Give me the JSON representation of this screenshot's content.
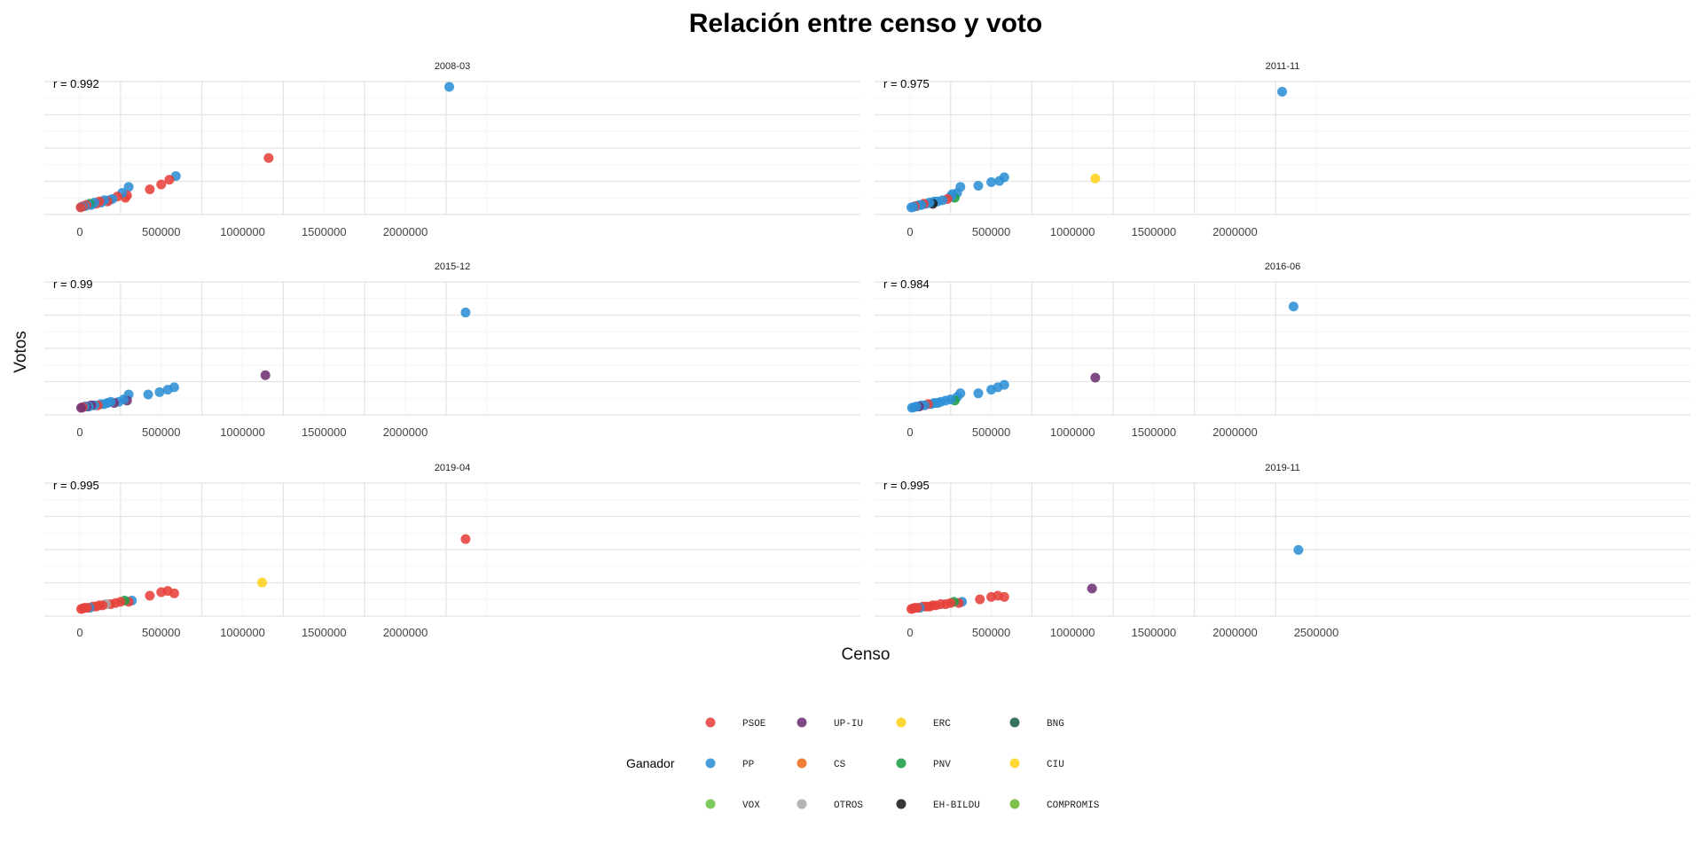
{
  "chart_data": {
    "type": "scatter",
    "title": "Relación entre censo y voto",
    "xlabel": "Censo",
    "ylabel": "Votos",
    "grid": true,
    "legend": {
      "title": "Ganador",
      "placement": "bottom",
      "entries": [
        {
          "name": "PSOE",
          "color": "#E6413A"
        },
        {
          "name": "UP-IU",
          "color": "#6E3274"
        },
        {
          "name": "ERC",
          "color": "#FFD21E"
        },
        {
          "name": "BNG",
          "color": "#1B5E4B"
        },
        {
          "name": "PP",
          "color": "#2D8FD5"
        },
        {
          "name": "CS",
          "color": "#EF6B1E"
        },
        {
          "name": "PNV",
          "color": "#1B9E48"
        },
        {
          "name": "CIU",
          "color": "#FFD21E"
        },
        {
          "name": "VOX",
          "color": "#6EC449"
        },
        {
          "name": "OTROS",
          "color": "#A9A9A9"
        },
        {
          "name": "EH-BILDU",
          "color": "#1A1A1A"
        },
        {
          "name": "COMPROMIS",
          "color": "#6EB836"
        }
      ]
    },
    "panels": [
      {
        "label": "2008-03",
        "r_label": "r = 0.992",
        "xticks": [
          "0",
          "500000",
          "1000000",
          "1500000",
          "2000000"
        ],
        "points": [
          {
            "x": 2270000,
            "y": 1.0,
            "party": "PP"
          },
          {
            "x": 1160000,
            "y": 0.41,
            "party": "PSOE"
          },
          {
            "x": 590000,
            "y": 0.26,
            "party": "PP"
          },
          {
            "x": 550000,
            "y": 0.23,
            "party": "PSOE"
          },
          {
            "x": 500000,
            "y": 0.19,
            "party": "PSOE"
          },
          {
            "x": 430000,
            "y": 0.15,
            "party": "PSOE"
          },
          {
            "x": 300000,
            "y": 0.17,
            "party": "PP"
          },
          {
            "x": 290000,
            "y": 0.1,
            "party": "PSOE"
          },
          {
            "x": 280000,
            "y": 0.08,
            "party": "PSOE"
          },
          {
            "x": 260000,
            "y": 0.12,
            "party": "PP"
          },
          {
            "x": 230000,
            "y": 0.09,
            "party": "PSOE"
          },
          {
            "x": 200000,
            "y": 0.07,
            "party": "PP"
          },
          {
            "x": 180000,
            "y": 0.06,
            "party": "PP"
          },
          {
            "x": 170000,
            "y": 0.05,
            "party": "PSOE"
          },
          {
            "x": 150000,
            "y": 0.06,
            "party": "PP"
          },
          {
            "x": 130000,
            "y": 0.04,
            "party": "PP"
          },
          {
            "x": 120000,
            "y": 0.05,
            "party": "PSOE"
          },
          {
            "x": 100000,
            "y": 0.03,
            "party": "PSOE"
          },
          {
            "x": 90000,
            "y": 0.04,
            "party": "PP"
          },
          {
            "x": 70000,
            "y": 0.02,
            "party": "PP"
          },
          {
            "x": 60000,
            "y": 0.03,
            "party": "PNV"
          },
          {
            "x": 50000,
            "y": 0.02,
            "party": "PP"
          },
          {
            "x": 40000,
            "y": 0.02,
            "party": "PSOE"
          },
          {
            "x": 30000,
            "y": 0.01,
            "party": "PP"
          },
          {
            "x": 20000,
            "y": 0.01,
            "party": "PSOE"
          },
          {
            "x": 10000,
            "y": 0.005,
            "party": "PP"
          },
          {
            "x": 5000,
            "y": 0.0,
            "party": "PSOE"
          }
        ]
      },
      {
        "label": "2011-11",
        "r_label": "r = 0.975",
        "xticks": [
          "0",
          "500000",
          "1000000",
          "1500000",
          "2000000"
        ],
        "points": [
          {
            "x": 2290000,
            "y": 0.96,
            "party": "PP"
          },
          {
            "x": 1140000,
            "y": 0.24,
            "party": "CIU"
          },
          {
            "x": 580000,
            "y": 0.25,
            "party": "PP"
          },
          {
            "x": 550000,
            "y": 0.22,
            "party": "PP"
          },
          {
            "x": 500000,
            "y": 0.21,
            "party": "PP"
          },
          {
            "x": 420000,
            "y": 0.18,
            "party": "PP"
          },
          {
            "x": 310000,
            "y": 0.17,
            "party": "PP"
          },
          {
            "x": 290000,
            "y": 0.12,
            "party": "PP"
          },
          {
            "x": 275000,
            "y": 0.08,
            "party": "PNV"
          },
          {
            "x": 260000,
            "y": 0.11,
            "party": "PP"
          },
          {
            "x": 250000,
            "y": 0.09,
            "party": "PP"
          },
          {
            "x": 230000,
            "y": 0.07,
            "party": "PSOE"
          },
          {
            "x": 200000,
            "y": 0.06,
            "party": "PP"
          },
          {
            "x": 170000,
            "y": 0.05,
            "party": "PP"
          },
          {
            "x": 150000,
            "y": 0.05,
            "party": "PP"
          },
          {
            "x": 140000,
            "y": 0.03,
            "party": "EH-BILDU"
          },
          {
            "x": 120000,
            "y": 0.04,
            "party": "PP"
          },
          {
            "x": 100000,
            "y": 0.03,
            "party": "PP"
          },
          {
            "x": 85000,
            "y": 0.03,
            "party": "PSOE"
          },
          {
            "x": 70000,
            "y": 0.02,
            "party": "PP"
          },
          {
            "x": 55000,
            "y": 0.02,
            "party": "PP"
          },
          {
            "x": 40000,
            "y": 0.01,
            "party": "PP"
          },
          {
            "x": 30000,
            "y": 0.01,
            "party": "PSOE"
          },
          {
            "x": 20000,
            "y": 0.005,
            "party": "PP"
          },
          {
            "x": 8000,
            "y": 0.0,
            "party": "PP"
          }
        ]
      },
      {
        "label": "2015-12",
        "r_label": "r = 0.99",
        "xticks": [
          "0",
          "500000",
          "1000000",
          "1500000",
          "2000000"
        ],
        "points": [
          {
            "x": 2370000,
            "y": 0.79,
            "party": "PP"
          },
          {
            "x": 1140000,
            "y": 0.27,
            "party": "UP-IU"
          },
          {
            "x": 580000,
            "y": 0.17,
            "party": "PP"
          },
          {
            "x": 540000,
            "y": 0.15,
            "party": "PP"
          },
          {
            "x": 490000,
            "y": 0.13,
            "party": "PP"
          },
          {
            "x": 420000,
            "y": 0.11,
            "party": "PP"
          },
          {
            "x": 300000,
            "y": 0.11,
            "party": "PP"
          },
          {
            "x": 290000,
            "y": 0.06,
            "party": "UP-IU"
          },
          {
            "x": 270000,
            "y": 0.07,
            "party": "PP"
          },
          {
            "x": 240000,
            "y": 0.05,
            "party": "PP"
          },
          {
            "x": 210000,
            "y": 0.04,
            "party": "UP-IU"
          },
          {
            "x": 190000,
            "y": 0.05,
            "party": "PP"
          },
          {
            "x": 170000,
            "y": 0.04,
            "party": "PP"
          },
          {
            "x": 150000,
            "y": 0.03,
            "party": "PP"
          },
          {
            "x": 130000,
            "y": 0.03,
            "party": "PP"
          },
          {
            "x": 110000,
            "y": 0.02,
            "party": "PSOE"
          },
          {
            "x": 90000,
            "y": 0.02,
            "party": "PP"
          },
          {
            "x": 70000,
            "y": 0.02,
            "party": "UP-IU"
          },
          {
            "x": 55000,
            "y": 0.01,
            "party": "PP"
          },
          {
            "x": 40000,
            "y": 0.01,
            "party": "UP-IU"
          },
          {
            "x": 30000,
            "y": 0.01,
            "party": "PP"
          },
          {
            "x": 18000,
            "y": 0.005,
            "party": "PSOE"
          },
          {
            "x": 8000,
            "y": 0.0,
            "party": "UP-IU"
          }
        ]
      },
      {
        "label": "2016-06",
        "r_label": "r = 0.984",
        "xticks": [
          "0",
          "500000",
          "1000000",
          "1500000",
          "2000000"
        ],
        "points": [
          {
            "x": 2360000,
            "y": 0.84,
            "party": "PP"
          },
          {
            "x": 1140000,
            "y": 0.25,
            "party": "UP-IU"
          },
          {
            "x": 580000,
            "y": 0.19,
            "party": "PP"
          },
          {
            "x": 540000,
            "y": 0.17,
            "party": "PP"
          },
          {
            "x": 500000,
            "y": 0.15,
            "party": "PP"
          },
          {
            "x": 420000,
            "y": 0.12,
            "party": "PP"
          },
          {
            "x": 310000,
            "y": 0.12,
            "party": "PP"
          },
          {
            "x": 290000,
            "y": 0.09,
            "party": "PP"
          },
          {
            "x": 275000,
            "y": 0.06,
            "party": "PNV"
          },
          {
            "x": 250000,
            "y": 0.07,
            "party": "PP"
          },
          {
            "x": 220000,
            "y": 0.06,
            "party": "PP"
          },
          {
            "x": 190000,
            "y": 0.05,
            "party": "PP"
          },
          {
            "x": 170000,
            "y": 0.04,
            "party": "PP"
          },
          {
            "x": 150000,
            "y": 0.04,
            "party": "PP"
          },
          {
            "x": 130000,
            "y": 0.03,
            "party": "PP"
          },
          {
            "x": 110000,
            "y": 0.03,
            "party": "PSOE"
          },
          {
            "x": 90000,
            "y": 0.02,
            "party": "PP"
          },
          {
            "x": 70000,
            "y": 0.02,
            "party": "PP"
          },
          {
            "x": 55000,
            "y": 0.01,
            "party": "UP-IU"
          },
          {
            "x": 40000,
            "y": 0.01,
            "party": "PP"
          },
          {
            "x": 25000,
            "y": 0.005,
            "party": "PP"
          },
          {
            "x": 12000,
            "y": 0.0,
            "party": "PP"
          }
        ]
      },
      {
        "label": "2019-04",
        "r_label": "r = 0.995",
        "xticks": [
          "0",
          "500000",
          "1000000",
          "1500000",
          "2000000"
        ],
        "points": [
          {
            "x": 2370000,
            "y": 0.58,
            "party": "PSOE"
          },
          {
            "x": 1120000,
            "y": 0.22,
            "party": "ERC"
          },
          {
            "x": 580000,
            "y": 0.13,
            "party": "PSOE"
          },
          {
            "x": 540000,
            "y": 0.15,
            "party": "PSOE"
          },
          {
            "x": 500000,
            "y": 0.14,
            "party": "PSOE"
          },
          {
            "x": 430000,
            "y": 0.11,
            "party": "PSOE"
          },
          {
            "x": 320000,
            "y": 0.07,
            "party": "PP"
          },
          {
            "x": 300000,
            "y": 0.06,
            "party": "PSOE"
          },
          {
            "x": 275000,
            "y": 0.07,
            "party": "PNV"
          },
          {
            "x": 250000,
            "y": 0.06,
            "party": "PSOE"
          },
          {
            "x": 220000,
            "y": 0.05,
            "party": "PSOE"
          },
          {
            "x": 190000,
            "y": 0.04,
            "party": "PSOE"
          },
          {
            "x": 160000,
            "y": 0.04,
            "party": "OTROS"
          },
          {
            "x": 140000,
            "y": 0.03,
            "party": "PSOE"
          },
          {
            "x": 120000,
            "y": 0.03,
            "party": "PSOE"
          },
          {
            "x": 100000,
            "y": 0.02,
            "party": "PSOE"
          },
          {
            "x": 80000,
            "y": 0.02,
            "party": "PSOE"
          },
          {
            "x": 60000,
            "y": 0.01,
            "party": "PP"
          },
          {
            "x": 45000,
            "y": 0.01,
            "party": "PSOE"
          },
          {
            "x": 30000,
            "y": 0.01,
            "party": "PSOE"
          },
          {
            "x": 18000,
            "y": 0.005,
            "party": "PSOE"
          },
          {
            "x": 8000,
            "y": 0.0,
            "party": "PSOE"
          }
        ]
      },
      {
        "label": "2019-11",
        "r_label": "r = 0.995",
        "xticks": [
          "0",
          "500000",
          "1000000",
          "1500000",
          "2000000",
          "2500000"
        ],
        "points": [
          {
            "x": 2390000,
            "y": 0.49,
            "party": "PP"
          },
          {
            "x": 1120000,
            "y": 0.17,
            "party": "UP-IU"
          },
          {
            "x": 580000,
            "y": 0.1,
            "party": "PSOE"
          },
          {
            "x": 540000,
            "y": 0.11,
            "party": "PSOE"
          },
          {
            "x": 500000,
            "y": 0.1,
            "party": "PSOE"
          },
          {
            "x": 430000,
            "y": 0.08,
            "party": "PSOE"
          },
          {
            "x": 320000,
            "y": 0.06,
            "party": "PP"
          },
          {
            "x": 300000,
            "y": 0.05,
            "party": "PSOE"
          },
          {
            "x": 270000,
            "y": 0.06,
            "party": "PNV"
          },
          {
            "x": 250000,
            "y": 0.05,
            "party": "PSOE"
          },
          {
            "x": 220000,
            "y": 0.04,
            "party": "PSOE"
          },
          {
            "x": 190000,
            "y": 0.04,
            "party": "PSOE"
          },
          {
            "x": 160000,
            "y": 0.03,
            "party": "PSOE"
          },
          {
            "x": 140000,
            "y": 0.03,
            "party": "PSOE"
          },
          {
            "x": 120000,
            "y": 0.02,
            "party": "PSOE"
          },
          {
            "x": 100000,
            "y": 0.02,
            "party": "PSOE"
          },
          {
            "x": 80000,
            "y": 0.02,
            "party": "PSOE"
          },
          {
            "x": 60000,
            "y": 0.01,
            "party": "PP"
          },
          {
            "x": 45000,
            "y": 0.01,
            "party": "PSOE"
          },
          {
            "x": 30000,
            "y": 0.01,
            "party": "PSOE"
          },
          {
            "x": 18000,
            "y": 0.005,
            "party": "PSOE"
          },
          {
            "x": 8000,
            "y": 0.0,
            "party": "PSOE"
          }
        ]
      }
    ]
  }
}
